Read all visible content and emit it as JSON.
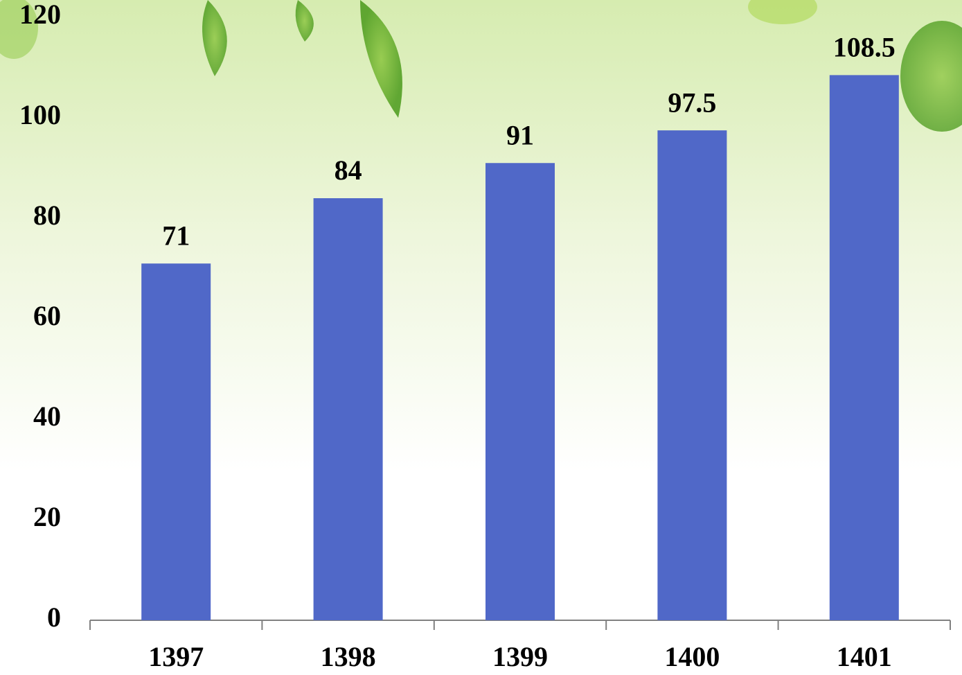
{
  "chart_data": {
    "type": "bar",
    "categories": [
      "1397",
      "1398",
      "1399",
      "1400",
      "1401"
    ],
    "values": [
      71,
      84,
      91,
      97.5,
      108.5
    ],
    "color": "#5068c8",
    "ylim": [
      0,
      120
    ],
    "yticks": [
      0,
      20,
      40,
      60,
      80,
      100,
      120
    ],
    "grid": false
  }
}
